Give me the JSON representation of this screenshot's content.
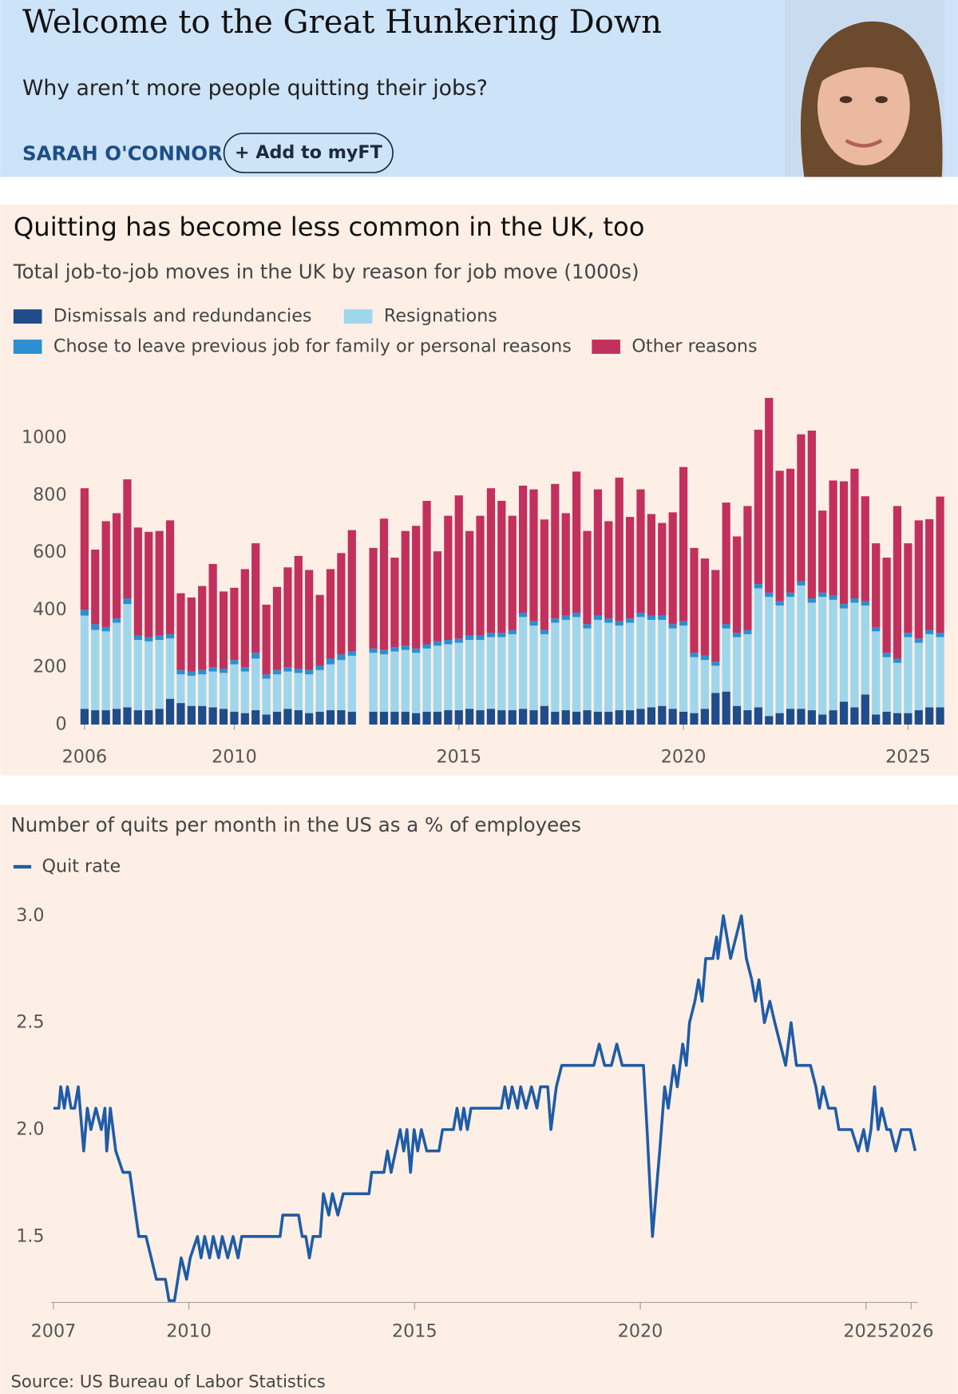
{
  "header": {
    "title": "Welcome to the Great Hunkering Down",
    "subtitle": "Why aren’t more people quitting their jobs?",
    "author": "SARAH O'CONNOR",
    "button": "+ Add to myFT"
  },
  "chart_data": [
    {
      "type": "bar",
      "stacked": true,
      "title": "Quitting has become less common in the UK, too",
      "subtitle": "Total job-to-job moves in the UK by reason for job move (1000s)",
      "categories": [
        "2006",
        null,
        null,
        null,
        null,
        null,
        null,
        null,
        null,
        null,
        null,
        null,
        null,
        null,
        "2010",
        null,
        null,
        null,
        null,
        null,
        null,
        null,
        null,
        null,
        null,
        null,
        null,
        null,
        null,
        null,
        null,
        null,
        null,
        null,
        null,
        "2015",
        null,
        null,
        null,
        null,
        null,
        null,
        null,
        null,
        null,
        null,
        null,
        null,
        null,
        null,
        null,
        null,
        null,
        null,
        null,
        null,
        "2020",
        null,
        null,
        null,
        null,
        null,
        null,
        null,
        null,
        null,
        null,
        null,
        null,
        null,
        null,
        null,
        null,
        null,
        null,
        null,
        null,
        "2025",
        null,
        null,
        null
      ],
      "series": [
        {
          "name": "Dismissals and redundancies",
          "color": "#1f4c8a",
          "values": [
            55,
            50,
            50,
            55,
            60,
            50,
            50,
            55,
            90,
            75,
            65,
            65,
            60,
            55,
            45,
            40,
            50,
            35,
            45,
            55,
            50,
            40,
            45,
            50,
            50,
            45,
            null,
            45,
            45,
            45,
            45,
            40,
            45,
            45,
            50,
            50,
            55,
            50,
            55,
            50,
            50,
            55,
            50,
            65,
            45,
            50,
            45,
            50,
            45,
            45,
            50,
            50,
            55,
            60,
            65,
            55,
            45,
            40,
            55,
            110,
            115,
            65,
            50,
            60,
            30,
            40,
            55,
            55,
            50,
            35,
            50,
            80,
            60,
            105,
            35,
            45,
            40,
            40,
            50,
            60,
            60
          ]
        },
        {
          "name": "Resignations",
          "color": "#9ed6ec",
          "values": [
            325,
            280,
            275,
            300,
            360,
            245,
            240,
            240,
            210,
            100,
            105,
            110,
            125,
            125,
            165,
            145,
            180,
            125,
            130,
            130,
            130,
            135,
            145,
            160,
            175,
            195,
            null,
            205,
            200,
            210,
            215,
            210,
            220,
            230,
            230,
            235,
            240,
            245,
            250,
            255,
            265,
            320,
            295,
            250,
            310,
            315,
            330,
            285,
            320,
            310,
            295,
            305,
            320,
            305,
            300,
            280,
            300,
            195,
            170,
            95,
            220,
            240,
            265,
            415,
            415,
            375,
            390,
            430,
            375,
            410,
            385,
            325,
            365,
            310,
            290,
            190,
            175,
            265,
            235,
            255,
            245
          ]
        },
        {
          "name": "Chose to leave previous job for family or personal reasons",
          "color": "#2b8fd2",
          "values": [
            20,
            20,
            15,
            15,
            20,
            15,
            15,
            15,
            15,
            15,
            15,
            15,
            15,
            15,
            15,
            15,
            20,
            15,
            15,
            15,
            15,
            15,
            15,
            20,
            20,
            15,
            null,
            15,
            15,
            15,
            15,
            15,
            15,
            15,
            15,
            15,
            15,
            15,
            15,
            15,
            15,
            15,
            15,
            15,
            15,
            15,
            15,
            15,
            15,
            15,
            15,
            15,
            15,
            15,
            15,
            15,
            15,
            15,
            15,
            15,
            15,
            15,
            15,
            15,
            15,
            15,
            15,
            15,
            15,
            15,
            15,
            15,
            15,
            15,
            15,
            15,
            15,
            15,
            15,
            15,
            15
          ]
        },
        {
          "name": "Other reasons",
          "color": "#c2305e",
          "values": [
            424,
            260,
            369,
            367,
            415,
            377,
            367,
            365,
            397,
            268,
            258,
            293,
            360,
            269,
            252,
            342,
            382,
            243,
            290,
            348,
            393,
            349,
            247,
            312,
            353,
            423,
            null,
            351,
            458,
            312,
            400,
            428,
            500,
            314,
            433,
            499,
            365,
            418,
            504,
            460,
            398,
            443,
            460,
            385,
            469,
            357,
            492,
            325,
            440,
            339,
            501,
            354,
            430,
            354,
            323,
            390,
            538,
            366,
            339,
            319,
            424,
            336,
            432,
            538,
            679,
            455,
            432,
            512,
            585,
            286,
            401,
            428,
            452,
            366,
            292,
            332,
            532,
            312,
            412,
            386,
            475
          ]
        }
      ],
      "ylim": [
        0,
        1150
      ],
      "yticks": [
        0,
        200,
        400,
        600,
        800,
        1000
      ],
      "grid": false
    },
    {
      "type": "line",
      "subtitle": "Number of quits per month in the US as a % of employees",
      "source": "Source: US Bureau of Labor Statistics",
      "x": [
        2007.0,
        2007.12,
        2007.16,
        2007.24,
        2007.31,
        2007.39,
        2007.47,
        2007.55,
        2007.67,
        2007.75,
        2007.83,
        2007.94,
        2008.06,
        2008.14,
        2008.18,
        2008.26,
        2008.38,
        2008.54,
        2008.69,
        2008.89,
        2009.05,
        2009.28,
        2009.48,
        2009.56,
        2009.68,
        2009.83,
        2009.95,
        2010.03,
        2010.19,
        2010.27,
        2010.35,
        2010.46,
        2010.54,
        2010.66,
        2010.74,
        2010.86,
        2010.98,
        2011.09,
        2011.17,
        2012.02,
        2012.08,
        2012.43,
        2012.51,
        2012.59,
        2012.67,
        2012.75,
        2012.91,
        2012.98,
        2013.1,
        2013.18,
        2013.3,
        2013.42,
        2013.99,
        2014.05,
        2014.32,
        2014.4,
        2014.48,
        2014.68,
        2014.76,
        2014.83,
        2014.91,
        2014.99,
        2015.07,
        2015.15,
        2015.27,
        2015.54,
        2015.62,
        2015.86,
        2015.94,
        2016.02,
        2016.09,
        2016.17,
        2016.25,
        2016.92,
        2017.0,
        2017.08,
        2017.16,
        2017.28,
        2017.35,
        2017.47,
        2017.59,
        2017.71,
        2017.79,
        2017.95,
        2018.02,
        2018.14,
        2018.26,
        2018.97,
        2019.09,
        2019.21,
        2019.36,
        2019.48,
        2019.6,
        2020.07,
        2020.15,
        2020.27,
        2020.43,
        2020.54,
        2020.62,
        2020.74,
        2020.82,
        2020.94,
        2021.02,
        2021.09,
        2021.21,
        2021.29,
        2021.37,
        2021.45,
        2021.61,
        2021.69,
        2021.72,
        2021.84,
        2021.92,
        2022.0,
        2022.12,
        2022.24,
        2022.35,
        2022.47,
        2022.55,
        2022.63,
        2022.75,
        2022.87,
        2022.98,
        2023.1,
        2023.22,
        2023.34,
        2023.46,
        2023.77,
        2023.89,
        2023.97,
        2024.05,
        2024.17,
        2024.32,
        2024.4,
        2024.68,
        2024.83,
        2024.95,
        2025.03,
        2025.11,
        2025.19,
        2025.27,
        2025.35,
        2025.46,
        2025.54,
        2025.66,
        2025.78,
        2025.98,
        2026.09
      ],
      "series": [
        {
          "name": "Quit rate",
          "color": "#1f5ca6",
          "values": [
            2.1,
            2.1,
            2.2,
            2.1,
            2.2,
            2.1,
            2.1,
            2.2,
            1.9,
            2.1,
            2.0,
            2.1,
            2.0,
            2.1,
            1.9,
            2.1,
            1.9,
            1.8,
            1.8,
            1.5,
            1.5,
            1.3,
            1.3,
            1.2,
            1.2,
            1.4,
            1.3,
            1.4,
            1.5,
            1.4,
            1.5,
            1.4,
            1.5,
            1.4,
            1.5,
            1.4,
            1.5,
            1.4,
            1.5,
            1.5,
            1.6,
            1.6,
            1.5,
            1.5,
            1.4,
            1.5,
            1.5,
            1.7,
            1.6,
            1.7,
            1.6,
            1.7,
            1.7,
            1.8,
            1.8,
            1.9,
            1.8,
            2.0,
            1.9,
            2.0,
            1.8,
            2.0,
            1.9,
            2.0,
            1.9,
            1.9,
            2.0,
            2.0,
            2.1,
            2.0,
            2.1,
            2.0,
            2.1,
            2.1,
            2.2,
            2.1,
            2.2,
            2.1,
            2.2,
            2.1,
            2.2,
            2.1,
            2.2,
            2.2,
            2.0,
            2.2,
            2.3,
            2.3,
            2.4,
            2.3,
            2.3,
            2.4,
            2.3,
            2.3,
            2.0,
            1.5,
            1.9,
            2.2,
            2.1,
            2.3,
            2.2,
            2.4,
            2.3,
            2.5,
            2.6,
            2.7,
            2.6,
            2.8,
            2.8,
            2.9,
            2.8,
            3.0,
            2.9,
            2.8,
            2.9,
            3.0,
            2.8,
            2.7,
            2.6,
            2.7,
            2.5,
            2.6,
            2.5,
            2.4,
            2.3,
            2.5,
            2.3,
            2.3,
            2.2,
            2.1,
            2.2,
            2.1,
            2.1,
            2.0,
            2.0,
            1.9,
            2.0,
            1.9,
            2.0,
            2.2,
            2.0,
            2.1,
            2.0,
            2.0,
            1.9,
            2.0,
            2.0,
            1.9
          ]
        }
      ],
      "xlim": [
        2006.95,
        2026.15
      ],
      "xticks": [
        2007,
        2010,
        2015,
        2020,
        2025,
        2026
      ],
      "ylim": [
        1.2,
        3.05
      ],
      "yticks": [
        {
          "value": 3,
          "label": "3.0"
        },
        2.5,
        {
          "value": 2,
          "label": "2.0"
        },
        1.5
      ],
      "grid": false
    }
  ]
}
